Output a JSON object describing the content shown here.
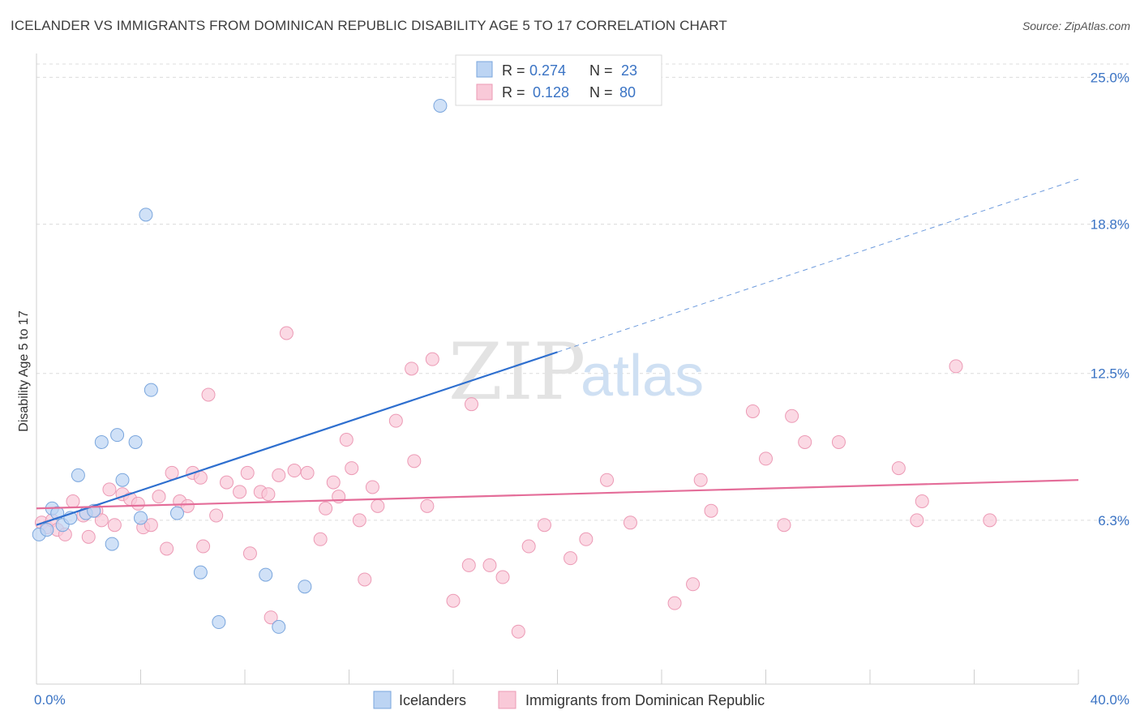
{
  "header": {
    "title": "ICELANDER VS IMMIGRANTS FROM DOMINICAN REPUBLIC DISABILITY AGE 5 TO 17 CORRELATION CHART",
    "source": "Source: ZipAtlas.com"
  },
  "watermark": {
    "zip": "ZIP",
    "atlas": "atlas"
  },
  "legend": {
    "rows": [
      {
        "r_label": "R =",
        "r_value": "0.274",
        "n_label": "N =",
        "n_value": "23",
        "color": "#a9c9f0"
      },
      {
        "r_label": "R =",
        "r_value": "0.128",
        "n_label": "N =",
        "n_value": "80",
        "color": "#f6bcd0"
      }
    ]
  },
  "colors": {
    "blue_fill": "#bcd4f3",
    "blue_stroke": "#7aa6dd",
    "blue_line": "#2e6fcf",
    "pink_fill": "#f9c9d8",
    "pink_stroke": "#ec9ab5",
    "pink_line": "#e46d99",
    "tick_label": "#3a73c4"
  },
  "chart_data": {
    "type": "scatter",
    "xlabel": "",
    "ylabel": "Disability Age 5 to 17",
    "xlim": [
      0,
      40
    ],
    "ylim": [
      0,
      25.8
    ],
    "x_tick_labels": [
      {
        "value": 0,
        "label": "0.0%"
      },
      {
        "value": 40,
        "label": "40.0%"
      }
    ],
    "y_tick_labels": [
      {
        "value": 6.3,
        "label": "6.3%"
      },
      {
        "value": 12.5,
        "label": "12.5%"
      },
      {
        "value": 18.8,
        "label": "18.8%"
      },
      {
        "value": 25.0,
        "label": "25.0%"
      }
    ],
    "x_minor_ticks": [
      0,
      4,
      8,
      12,
      16,
      20,
      24,
      28,
      32,
      36,
      40
    ],
    "grid": true,
    "legend_position": "top-center",
    "series": [
      {
        "name": "Icelanders",
        "color": "#a9c9f0",
        "points": [
          [
            0.1,
            5.7
          ],
          [
            0.4,
            5.9
          ],
          [
            0.6,
            6.8
          ],
          [
            0.8,
            6.6
          ],
          [
            1.0,
            6.1
          ],
          [
            1.3,
            6.4
          ],
          [
            1.6,
            8.2
          ],
          [
            1.9,
            6.6
          ],
          [
            2.2,
            6.7
          ],
          [
            2.5,
            9.6
          ],
          [
            2.9,
            5.3
          ],
          [
            3.1,
            9.9
          ],
          [
            3.3,
            8.0
          ],
          [
            3.8,
            9.6
          ],
          [
            4.0,
            6.4
          ],
          [
            4.2,
            19.2
          ],
          [
            4.4,
            11.8
          ],
          [
            5.4,
            6.6
          ],
          [
            6.3,
            4.1
          ],
          [
            7.0,
            2.0
          ],
          [
            8.8,
            4.0
          ],
          [
            9.3,
            1.8
          ],
          [
            10.3,
            3.5
          ],
          [
            15.5,
            23.8
          ]
        ],
        "trend": {
          "x": [
            0,
            20
          ],
          "y": [
            6.1,
            13.4
          ],
          "dashed_extension": {
            "x": [
              20,
              40
            ],
            "y": [
              13.4,
              20.7
            ]
          }
        }
      },
      {
        "name": "Immigrants from Dominican Republic",
        "color": "#f6bcd0",
        "points": [
          [
            0.2,
            6.2
          ],
          [
            0.4,
            6.0
          ],
          [
            0.6,
            6.3
          ],
          [
            0.8,
            5.9
          ],
          [
            1.1,
            5.7
          ],
          [
            1.4,
            7.1
          ],
          [
            1.8,
            6.5
          ],
          [
            2.0,
            5.6
          ],
          [
            2.3,
            6.7
          ],
          [
            2.5,
            6.3
          ],
          [
            2.8,
            7.6
          ],
          [
            3.0,
            6.1
          ],
          [
            3.3,
            7.4
          ],
          [
            3.6,
            7.2
          ],
          [
            3.9,
            7.0
          ],
          [
            4.1,
            6.0
          ],
          [
            4.4,
            6.1
          ],
          [
            4.7,
            7.3
          ],
          [
            5.0,
            5.1
          ],
          [
            5.2,
            8.3
          ],
          [
            5.5,
            7.1
          ],
          [
            5.8,
            6.9
          ],
          [
            6.0,
            8.3
          ],
          [
            6.3,
            8.1
          ],
          [
            6.4,
            5.2
          ],
          [
            6.6,
            11.6
          ],
          [
            6.9,
            6.5
          ],
          [
            7.3,
            7.9
          ],
          [
            7.8,
            7.5
          ],
          [
            8.1,
            8.3
          ],
          [
            8.2,
            4.9
          ],
          [
            8.6,
            7.5
          ],
          [
            8.9,
            7.4
          ],
          [
            9.0,
            2.2
          ],
          [
            9.3,
            8.2
          ],
          [
            9.6,
            14.2
          ],
          [
            9.9,
            8.4
          ],
          [
            10.4,
            8.3
          ],
          [
            10.9,
            5.5
          ],
          [
            11.1,
            6.8
          ],
          [
            11.4,
            7.9
          ],
          [
            11.6,
            7.3
          ],
          [
            11.9,
            9.7
          ],
          [
            12.1,
            8.5
          ],
          [
            12.4,
            6.3
          ],
          [
            12.6,
            3.8
          ],
          [
            12.9,
            7.7
          ],
          [
            13.1,
            6.9
          ],
          [
            13.8,
            10.5
          ],
          [
            14.4,
            12.7
          ],
          [
            14.5,
            8.8
          ],
          [
            15.0,
            6.9
          ],
          [
            15.2,
            13.1
          ],
          [
            16.0,
            2.9
          ],
          [
            16.6,
            4.4
          ],
          [
            16.7,
            11.2
          ],
          [
            17.4,
            4.4
          ],
          [
            17.9,
            3.9
          ],
          [
            18.5,
            1.6
          ],
          [
            18.9,
            5.2
          ],
          [
            19.5,
            6.1
          ],
          [
            20.5,
            4.7
          ],
          [
            21.1,
            5.5
          ],
          [
            21.9,
            8.0
          ],
          [
            22.8,
            6.2
          ],
          [
            24.5,
            2.8
          ],
          [
            25.2,
            3.6
          ],
          [
            25.5,
            8.0
          ],
          [
            25.9,
            6.7
          ],
          [
            27.5,
            10.9
          ],
          [
            28.0,
            8.9
          ],
          [
            28.7,
            6.1
          ],
          [
            29.0,
            10.7
          ],
          [
            29.5,
            9.6
          ],
          [
            30.8,
            9.6
          ],
          [
            33.1,
            8.5
          ],
          [
            33.8,
            6.3
          ],
          [
            34.0,
            7.1
          ],
          [
            35.3,
            12.8
          ],
          [
            36.6,
            6.3
          ]
        ],
        "trend": {
          "x": [
            0,
            40
          ],
          "y": [
            6.8,
            8.0
          ]
        }
      }
    ]
  }
}
